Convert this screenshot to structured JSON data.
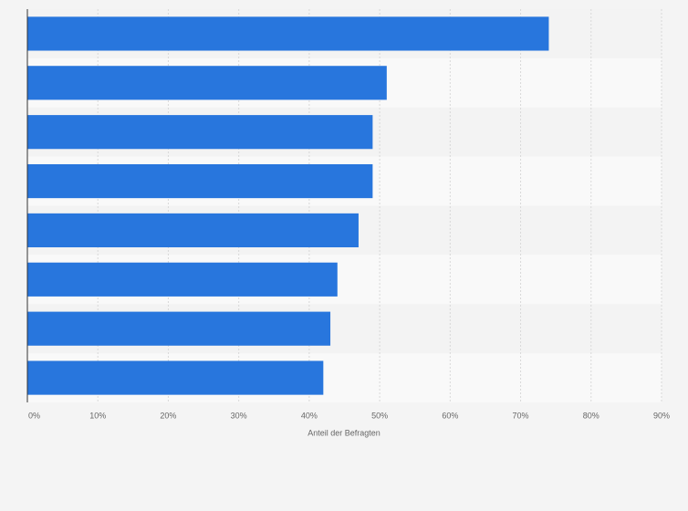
{
  "chart_data": {
    "type": "bar",
    "orientation": "horizontal",
    "values": [
      74,
      51,
      49,
      49,
      47,
      44,
      43,
      42
    ],
    "color": "#2876dd",
    "xlabel": "Anteil der Befragten",
    "xlim": [
      0,
      90
    ],
    "xticks": [
      {
        "value": 0,
        "label": "0%"
      },
      {
        "value": 10,
        "label": "10%"
      },
      {
        "value": 20,
        "label": "20%"
      },
      {
        "value": 30,
        "label": "30%"
      },
      {
        "value": 40,
        "label": "40%"
      },
      {
        "value": 50,
        "label": "50%"
      },
      {
        "value": 60,
        "label": "60%"
      },
      {
        "value": 70,
        "label": "70%"
      },
      {
        "value": 80,
        "label": "80%"
      },
      {
        "value": 90,
        "label": "90%"
      }
    ],
    "grid": true
  }
}
